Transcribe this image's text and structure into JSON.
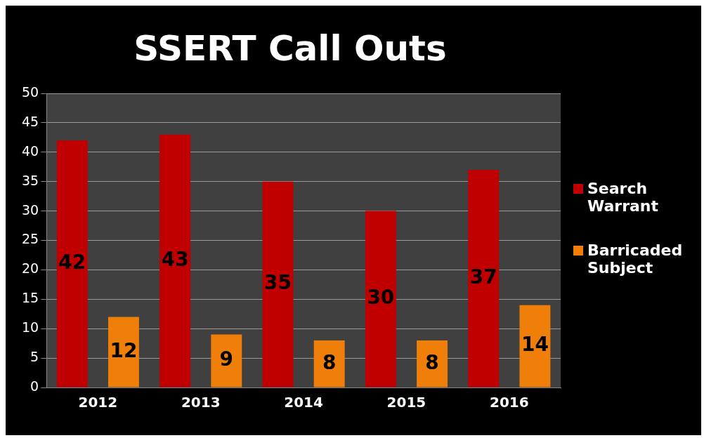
{
  "chart_data": {
    "type": "bar",
    "title": "SSERT Call Outs",
    "categories": [
      "2012",
      "2013",
      "2014",
      "2015",
      "2016"
    ],
    "series": [
      {
        "name": "Search Warrant",
        "color": "#c00000",
        "values": [
          42,
          43,
          35,
          30,
          37
        ]
      },
      {
        "name": "Barricaded Subject",
        "color": "#f07f09",
        "values": [
          12,
          9,
          8,
          8,
          14
        ]
      }
    ],
    "ylim": [
      0,
      50
    ],
    "yticks": [
      0,
      5,
      10,
      15,
      20,
      25,
      30,
      35,
      40,
      45,
      50
    ],
    "grid": "y",
    "legend": "right",
    "data_labels": true
  }
}
